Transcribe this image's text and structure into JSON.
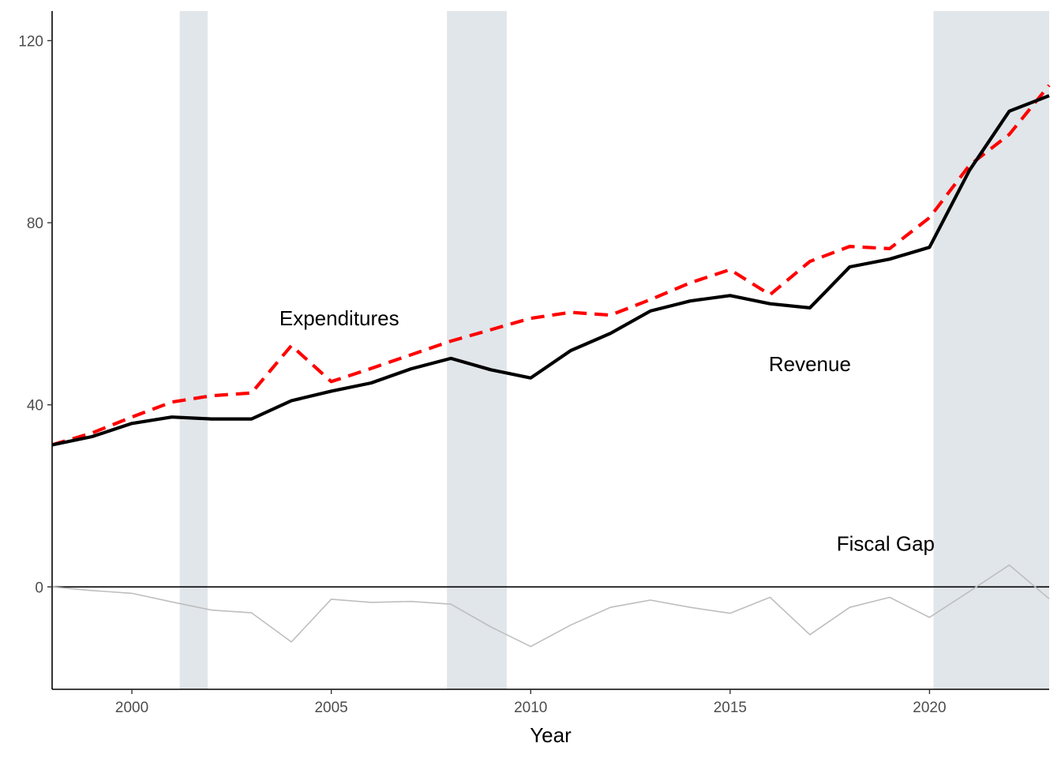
{
  "chart_data": {
    "type": "line",
    "xlabel": "Year",
    "ylabel": "",
    "xlim": [
      1998,
      2023
    ],
    "ylim": [
      -22.5,
      126.5
    ],
    "x_ticks": [
      2000,
      2005,
      2010,
      2015,
      2020
    ],
    "y_ticks": [
      0,
      40,
      80,
      120
    ],
    "grid": false,
    "legend": "none",
    "recession_shading": [
      {
        "start": 2001.2,
        "end": 2001.9
      },
      {
        "start": 2007.9,
        "end": 2009.4
      },
      {
        "start": 2020.1,
        "end": 2023
      }
    ],
    "zero_line": 0,
    "x": [
      1998,
      1999,
      2000,
      2001,
      2002,
      2003,
      2004,
      2005,
      2006,
      2007,
      2008,
      2009,
      2010,
      2011,
      2012,
      2013,
      2014,
      2015,
      2016,
      2017,
      2018,
      2019,
      2020,
      2021,
      2022,
      2023
    ],
    "series": [
      {
        "key": "revenue",
        "values": [
          31.2,
          33.0,
          35.9,
          37.3,
          36.9,
          36.9,
          40.9,
          43.0,
          44.8,
          47.9,
          50.2,
          47.7,
          45.9,
          51.9,
          55.7,
          60.6,
          62.8,
          64.0,
          62.2,
          61.3,
          70.3,
          72.0,
          74.6,
          91.5,
          104.5,
          107.9
        ],
        "color": "#000000",
        "dash": "solid"
      },
      {
        "key": "expenditures",
        "values": [
          31.2,
          33.8,
          37.3,
          40.6,
          42.0,
          42.6,
          53.0,
          45.1,
          48.0,
          51.0,
          54.0,
          56.5,
          59.0,
          60.3,
          59.7,
          63.1,
          66.8,
          69.7,
          64.2,
          71.5,
          74.8,
          74.3,
          81.1,
          92.6,
          99.4,
          110.2
        ],
        "color": "#ff0000",
        "dash": "dashed"
      },
      {
        "key": "fiscal_gap",
        "values": [
          0.0,
          -0.8,
          -1.4,
          -3.3,
          -5.1,
          -5.7,
          -12.1,
          -2.7,
          -3.4,
          -3.2,
          -3.8,
          -8.8,
          -13.1,
          -8.4,
          -4.5,
          -2.9,
          -4.5,
          -5.8,
          -2.3,
          -10.5,
          -4.5,
          -2.3,
          -6.7,
          -1.0,
          4.8,
          -2.6
        ],
        "color": "#bebebe",
        "dash": "solid"
      }
    ],
    "annotations": [
      {
        "text": "Expenditures",
        "x": 2005.2,
        "y": 59
      },
      {
        "text": "Revenue",
        "x": 2017.0,
        "y": 49
      },
      {
        "text": "Fiscal Gap",
        "x": 2018.9,
        "y": 9.5
      }
    ],
    "colors": {
      "shading": "#e1e6ea",
      "axis": "#000000",
      "zero_line": "#000000",
      "tick_text": "#4d4d4d"
    }
  }
}
